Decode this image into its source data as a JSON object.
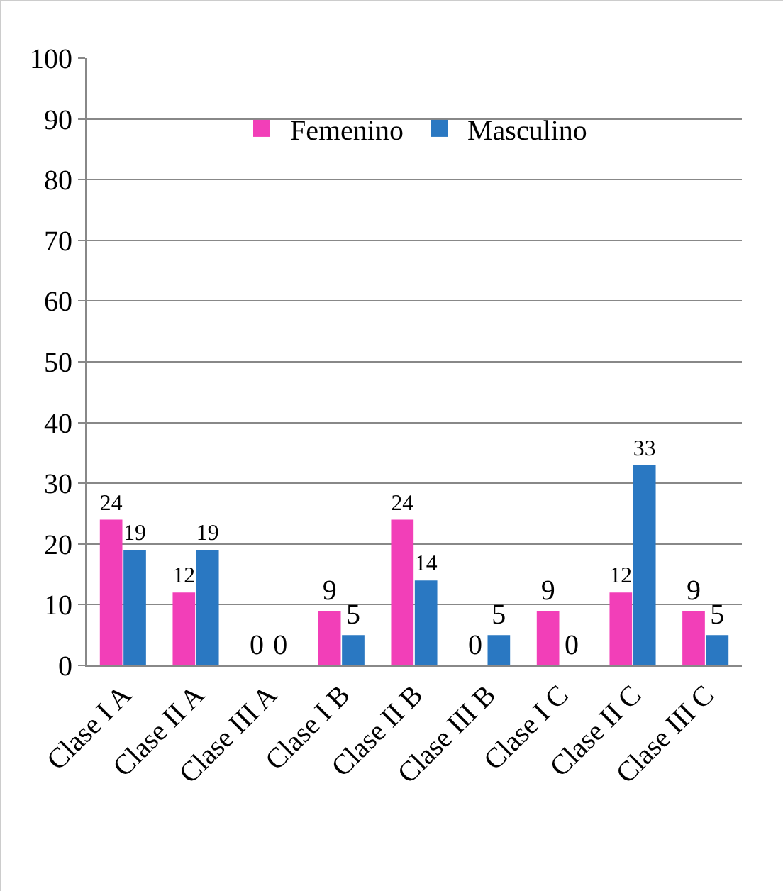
{
  "chart_data": {
    "type": "bar",
    "categories": [
      "Clase I A",
      "Clase II A",
      "Clase III A",
      "Clase I B",
      "Clase II B",
      "Clase III B",
      "Clase I C",
      "Clase II C",
      "Clase III C"
    ],
    "series": [
      {
        "name": "Femenino",
        "color": "#f23fb8",
        "values": [
          24,
          12,
          0,
          9,
          24,
          0,
          9,
          12,
          9
        ]
      },
      {
        "name": "Masculino",
        "color": "#2a78c2",
        "values": [
          19,
          19,
          0,
          5,
          14,
          5,
          0,
          33,
          5
        ]
      }
    ],
    "ylim": [
      0,
      100
    ],
    "yticks": [
      0,
      10,
      20,
      30,
      40,
      50,
      60,
      70,
      80,
      90,
      100
    ],
    "grid": "y",
    "legend": "top",
    "data_labels": true
  }
}
